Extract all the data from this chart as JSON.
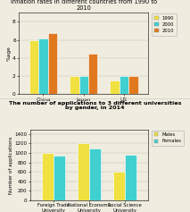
{
  "chart1": {
    "title": "Inflation rates in different countries from 1990 to\n2010",
    "ylabel": "%age",
    "categories": [
      "China",
      "Japan",
      "US"
    ],
    "years": [
      "1990",
      "2000",
      "2010"
    ],
    "values": {
      "1990": [
        6.0,
        2.0,
        1.5
      ],
      "2000": [
        6.2,
        2.0,
        2.0
      ],
      "2010": [
        6.8,
        4.5,
        2.0
      ]
    },
    "colors": [
      "#f0e040",
      "#40d0d0",
      "#e07820"
    ],
    "ylim": [
      0,
      9
    ],
    "yticks": [
      0,
      2,
      4,
      6,
      8
    ]
  },
  "chart2": {
    "title": "The number of applications to 3 different universities\nby gender, in 2014",
    "ylabel": "Number of applications",
    "categories": [
      "Foreign Trade\nUniversity",
      "National Economic\nUniversity",
      "Social Science\nUniversity"
    ],
    "genders": [
      "Males",
      "Females"
    ],
    "values": {
      "Males": [
        1000,
        1200,
        600
      ],
      "Females": [
        950,
        1100,
        970
      ]
    },
    "colors": [
      "#f0e040",
      "#40d0d0"
    ],
    "ylim": [
      0,
      1500
    ],
    "yticks": [
      0,
      200,
      400,
      600,
      800,
      1000,
      1200,
      1400
    ]
  },
  "background_color": "#f0ede0",
  "divider_color": "#cccccc"
}
